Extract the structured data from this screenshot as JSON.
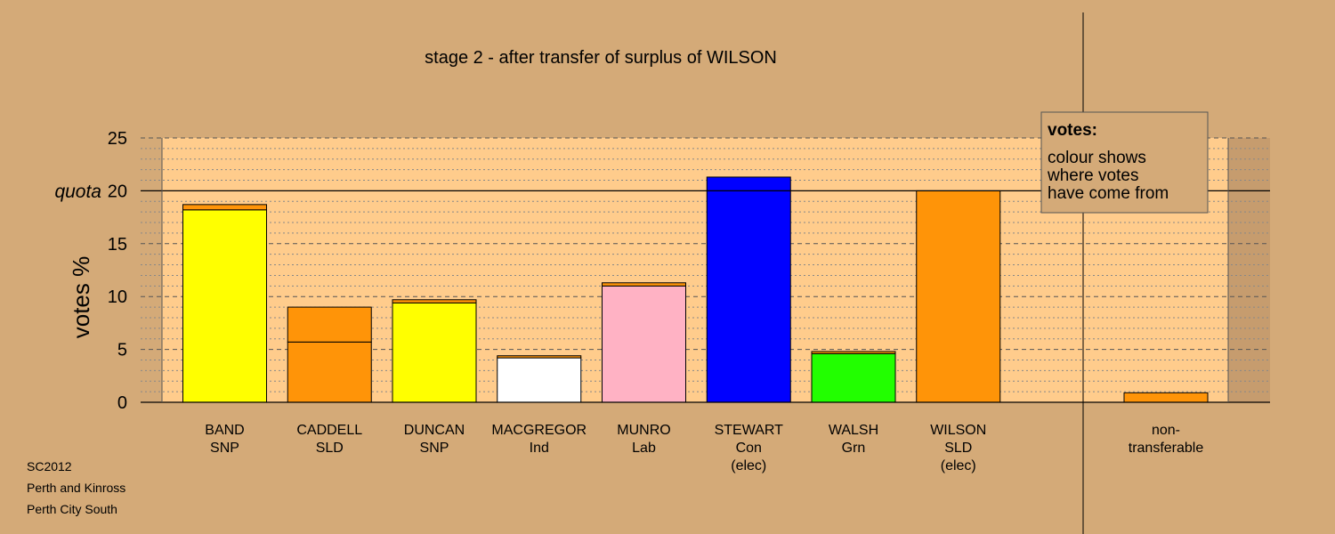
{
  "chart_data": {
    "type": "bar",
    "title": "stage 2 - after transfer of surplus of WILSON",
    "ylabel": "votes %",
    "ylim": [
      0,
      25
    ],
    "yticks": [
      0,
      5,
      10,
      15,
      20,
      25
    ],
    "quota": {
      "label": "quota",
      "value": 20
    },
    "grid": true,
    "candidates": [
      {
        "name": "BAND",
        "party": "SNP",
        "status": "",
        "segments": [
          {
            "value": 18.2,
            "color": "#ffff00"
          },
          {
            "value": 0.5,
            "color": "#ff9408"
          }
        ]
      },
      {
        "name": "CADDELL",
        "party": "SLD",
        "status": "",
        "segments": [
          {
            "value": 5.7,
            "color": "#ff9408"
          },
          {
            "value": 3.3,
            "color": "#ff9408"
          }
        ]
      },
      {
        "name": "DUNCAN",
        "party": "SNP",
        "status": "",
        "segments": [
          {
            "value": 9.4,
            "color": "#ffff00"
          },
          {
            "value": 0.3,
            "color": "#ff9408"
          }
        ]
      },
      {
        "name": "MACGREGOR",
        "party": "Ind",
        "status": "",
        "segments": [
          {
            "value": 4.2,
            "color": "#ffffff"
          },
          {
            "value": 0.2,
            "color": "#ff9408"
          }
        ]
      },
      {
        "name": "MUNRO",
        "party": "Lab",
        "status": "",
        "segments": [
          {
            "value": 11.0,
            "color": "#ffb2c4"
          },
          {
            "value": 0.3,
            "color": "#ff9408"
          }
        ]
      },
      {
        "name": "STEWART",
        "party": "Con",
        "status": "(elec)",
        "segments": [
          {
            "value": 21.3,
            "color": "#0000ff"
          }
        ]
      },
      {
        "name": "WALSH",
        "party": "Grn",
        "status": "",
        "segments": [
          {
            "value": 4.6,
            "color": "#22ff00"
          },
          {
            "value": 0.2,
            "color": "#ff9408"
          }
        ]
      },
      {
        "name": "WILSON",
        "party": "SLD",
        "status": "(elec)",
        "segments": [
          {
            "value": 20.0,
            "color": "#ff9408"
          }
        ]
      }
    ],
    "nontransferable": {
      "name": "non-",
      "party": "transferable",
      "value": 0.9,
      "color": "#ff9408"
    }
  },
  "legend": {
    "title": "votes:",
    "lines": [
      "colour shows",
      "where votes",
      "have come from"
    ]
  },
  "footer": [
    "SC2012",
    "Perth and Kinross",
    "Perth City South"
  ],
  "colors": {
    "background": "#d4aa78",
    "plot_area": "#ffcc8c",
    "side_panel": "#c69c6e"
  }
}
